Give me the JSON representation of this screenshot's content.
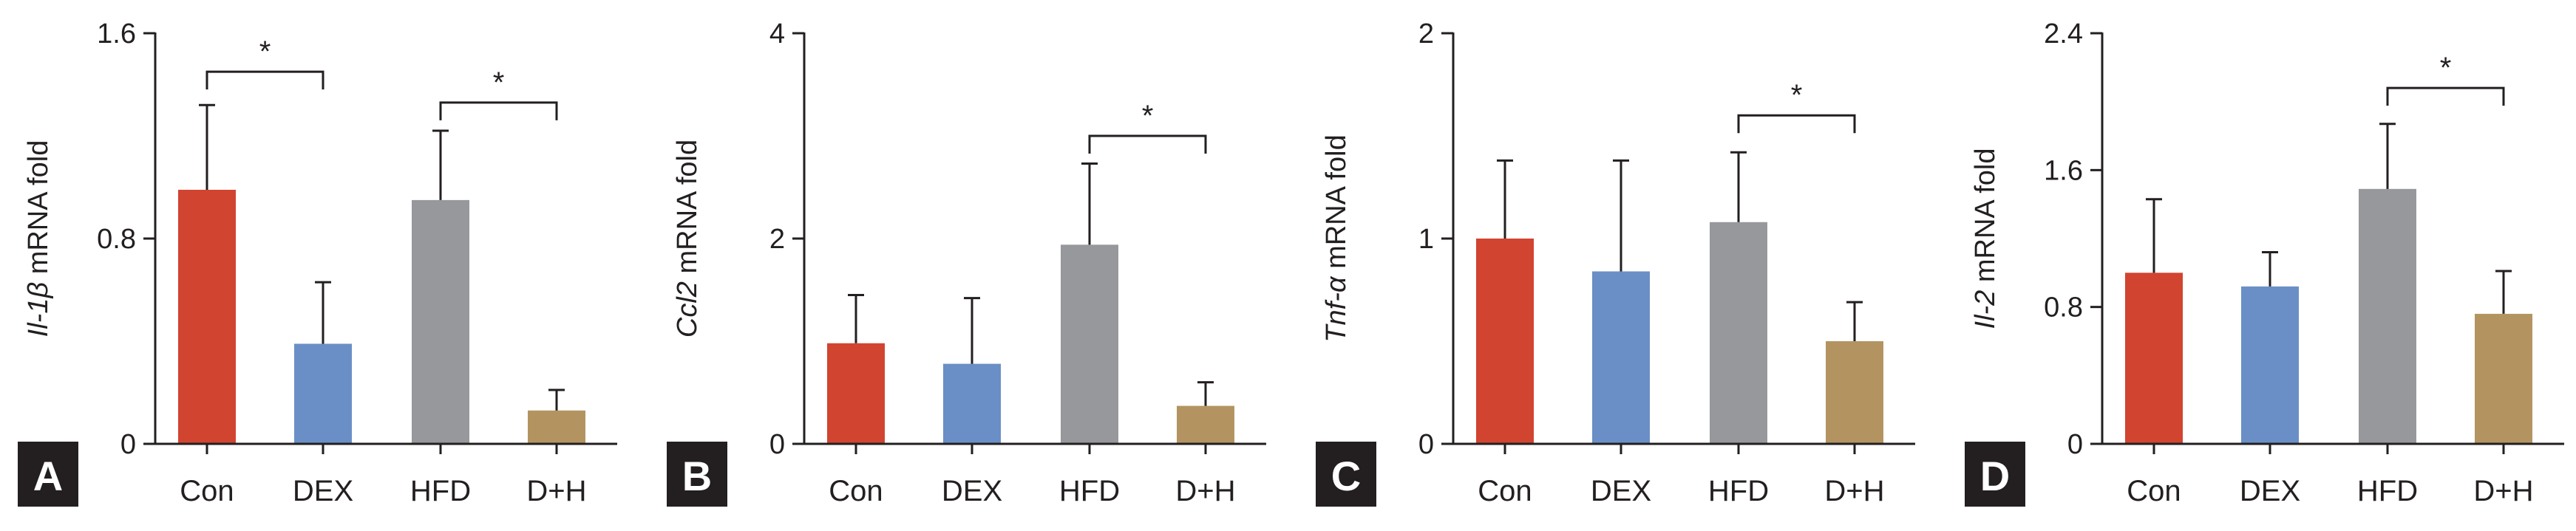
{
  "colors": {
    "Con": "#d14430",
    "DEX": "#6a8fc6",
    "HFD": "#97989b",
    "D+H": "#b39461",
    "axis": "#231f20",
    "label_bg": "#231f20"
  },
  "chart_data": [
    {
      "type": "bar",
      "panel": "A",
      "ylabel_italic": "Il-1β",
      "ylabel_rest": " mRNA fold",
      "categories": [
        "Con",
        "DEX",
        "HFD",
        "D+H"
      ],
      "values": [
        0.99,
        0.39,
        0.95,
        0.13
      ],
      "errors": [
        0.33,
        0.24,
        0.27,
        0.08
      ],
      "ylim": [
        0,
        1.6
      ],
      "yticks": [
        0,
        0.8,
        1.6
      ],
      "ytick_labels": [
        "0",
        "0.8",
        "1.6"
      ],
      "significance": [
        {
          "from": 0,
          "to": 1,
          "y": 1.45,
          "label": "*"
        },
        {
          "from": 2,
          "to": 3,
          "y": 1.33,
          "label": "*"
        }
      ]
    },
    {
      "type": "bar",
      "panel": "B",
      "ylabel_italic": "Ccl2",
      "ylabel_rest": " mRNA fold",
      "categories": [
        "Con",
        "DEX",
        "HFD",
        "D+H"
      ],
      "values": [
        0.98,
        0.78,
        1.94,
        0.37
      ],
      "errors": [
        0.47,
        0.64,
        0.79,
        0.23
      ],
      "ylim": [
        0,
        4
      ],
      "yticks": [
        0,
        2,
        4
      ],
      "ytick_labels": [
        "0",
        "2",
        "4"
      ],
      "significance": [
        {
          "from": 2,
          "to": 3,
          "y": 3.0,
          "label": "*"
        }
      ]
    },
    {
      "type": "bar",
      "panel": "C",
      "ylabel_italic": "Tnf-α",
      "ylabel_rest": " mRNA fold",
      "categories": [
        "Con",
        "DEX",
        "HFD",
        "D+H"
      ],
      "values": [
        1.0,
        0.84,
        1.08,
        0.5
      ],
      "errors": [
        0.38,
        0.54,
        0.34,
        0.19
      ],
      "ylim": [
        0,
        2
      ],
      "yticks": [
        0,
        1,
        2
      ],
      "ytick_labels": [
        "0",
        "1",
        "2"
      ],
      "significance": [
        {
          "from": 2,
          "to": 3,
          "y": 1.6,
          "label": "*"
        }
      ]
    },
    {
      "type": "bar",
      "panel": "D",
      "ylabel_italic": "Il-2",
      "ylabel_rest": " mRNA fold",
      "categories": [
        "Con",
        "DEX",
        "HFD",
        "D+H"
      ],
      "values": [
        1.0,
        0.92,
        1.49,
        0.76
      ],
      "errors": [
        0.43,
        0.2,
        0.38,
        0.25
      ],
      "ylim": [
        0,
        2.4
      ],
      "yticks": [
        0,
        0.8,
        1.6,
        2.4
      ],
      "ytick_labels": [
        "0",
        "0.8",
        "1.6",
        "2.4"
      ],
      "significance": [
        {
          "from": 2,
          "to": 3,
          "y": 2.08,
          "label": "*"
        }
      ]
    }
  ]
}
